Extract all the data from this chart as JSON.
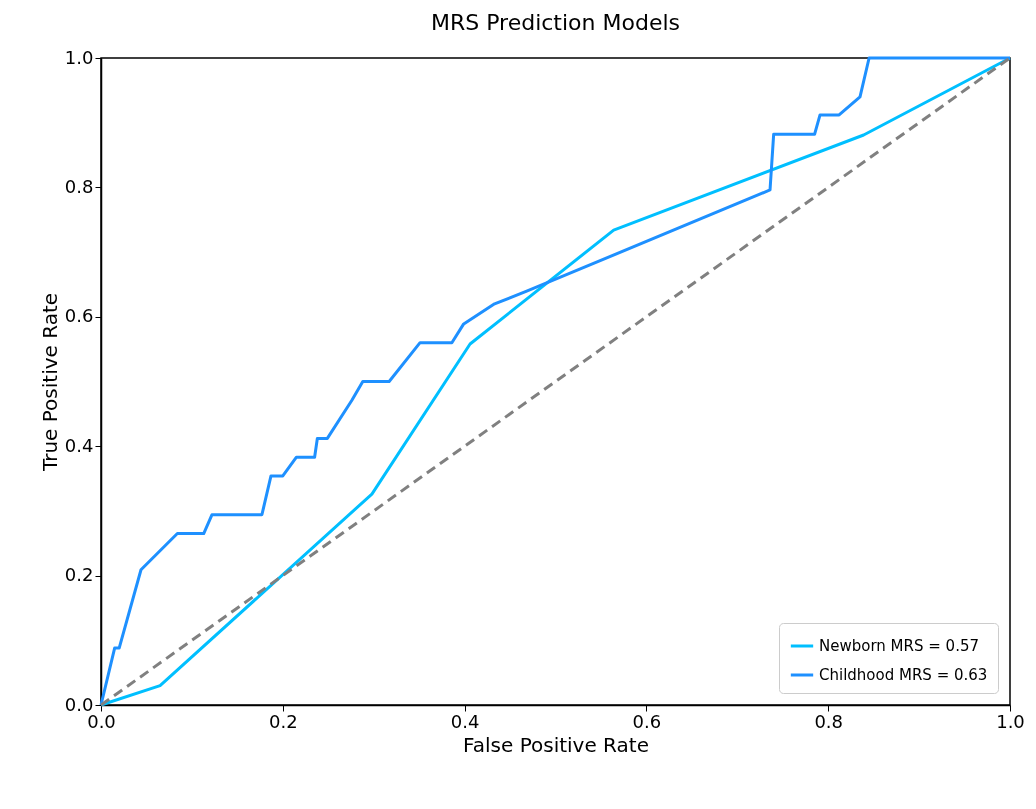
{
  "chart_data": {
    "type": "line",
    "title": "MRS Prediction Models",
    "xlabel": "False Positive Rate",
    "ylabel": "True Positive Rate",
    "xlim": [
      0,
      1
    ],
    "ylim": [
      0,
      1
    ],
    "xticks": [
      {
        "value": 0,
        "label": "0.0"
      },
      0.2,
      0.4,
      0.6,
      0.8,
      {
        "value": 1,
        "label": "1.0"
      }
    ],
    "yticks": [
      {
        "value": 0,
        "label": "0.0"
      },
      0.2,
      0.4,
      0.6,
      0.8,
      {
        "value": 1,
        "label": "1.0"
      }
    ],
    "legend": "bottom right",
    "grid": false,
    "marker": "none",
    "series": [
      {
        "name": "Newborn MRS = 0.57",
        "color": "#00bfff",
        "x": [
          0,
          0.065,
          0.298,
          0.406,
          0.564,
          0.839,
          1
        ],
        "values": [
          0,
          0.03,
          0.326,
          0.558,
          0.734,
          0.881,
          1
        ]
      },
      {
        "name": "Childhood MRS = 0.63",
        "color": "#1e90ff",
        "x": [
          0,
          0.015,
          0.02,
          0.044,
          0.084,
          0.113,
          0.122,
          0.177,
          0.187,
          0.2,
          0.215,
          0.235,
          0.238,
          0.249,
          0.276,
          0.288,
          0.317,
          0.351,
          0.386,
          0.399,
          0.433,
          0.469,
          0.736,
          0.74,
          0.785,
          0.791,
          0.812,
          0.835,
          0.845,
          1
        ],
        "values": [
          0,
          0.088,
          0.088,
          0.209,
          0.265,
          0.265,
          0.294,
          0.294,
          0.354,
          0.354,
          0.383,
          0.383,
          0.412,
          0.412,
          0.471,
          0.5,
          0.5,
          0.56,
          0.56,
          0.589,
          0.62,
          0.64,
          0.796,
          0.882,
          0.882,
          0.912,
          0.912,
          0.94,
          1,
          1
        ]
      },
      {
        "color": "#808080",
        "line_style": "dashed",
        "x": [
          0,
          1
        ],
        "values": [
          0,
          1
        ]
      }
    ]
  }
}
